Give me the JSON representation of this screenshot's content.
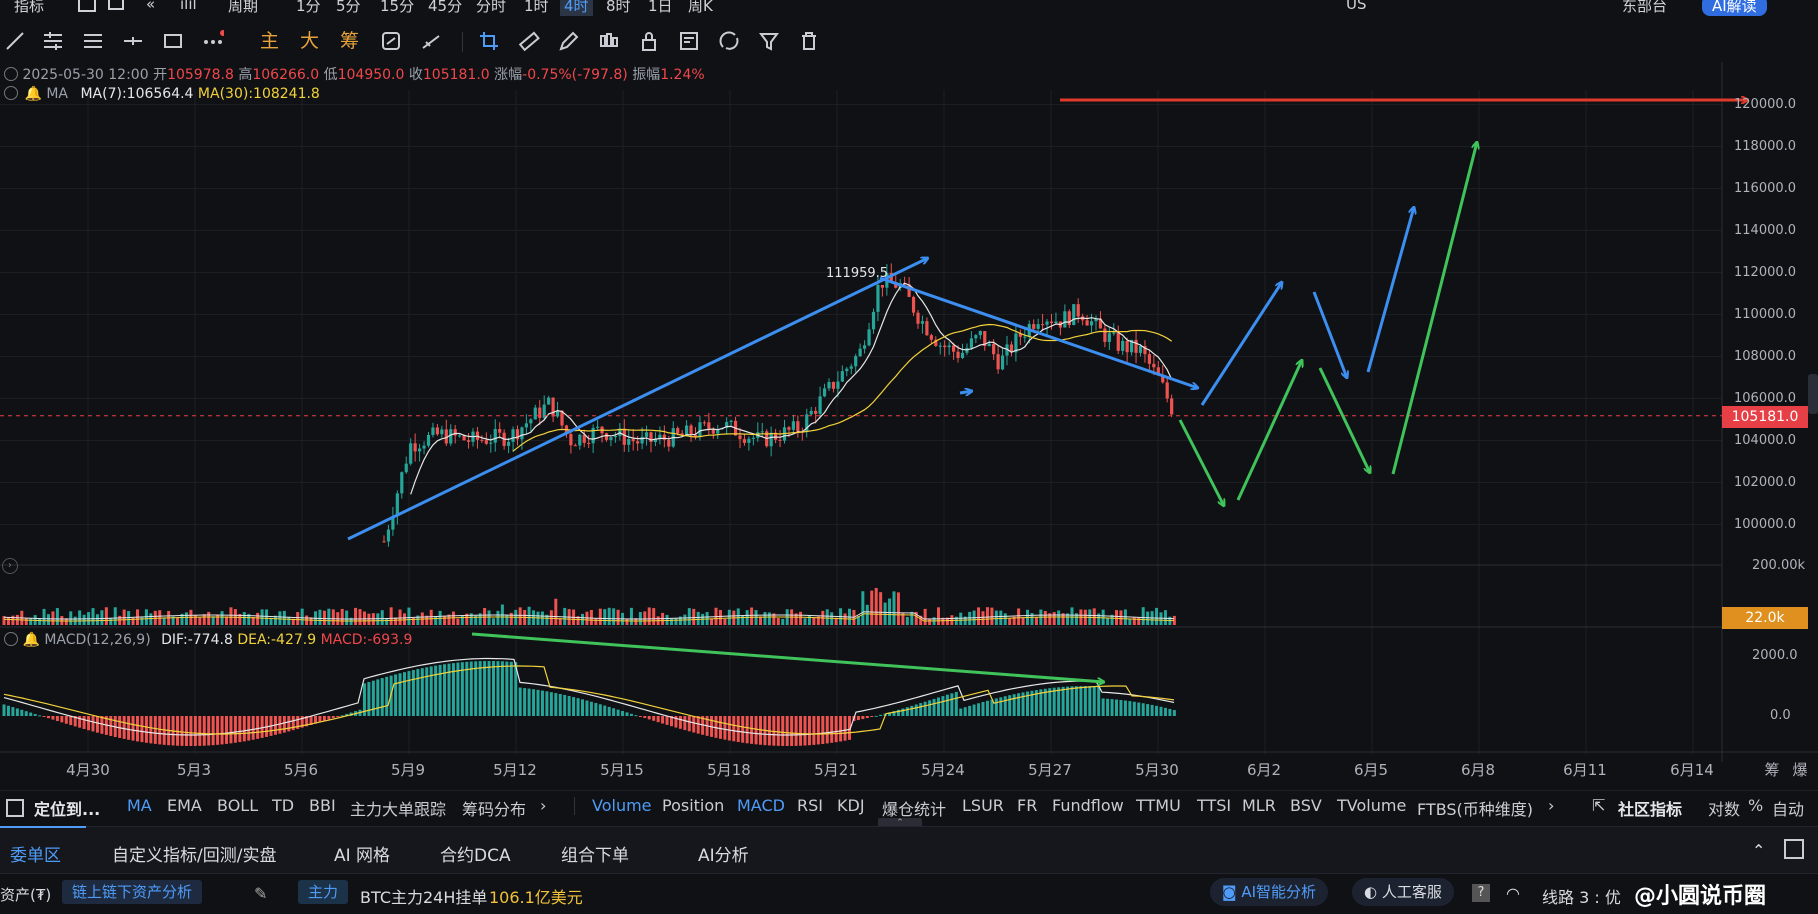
{
  "top_menu": {
    "items": [
      "指标",
      "周期",
      "1分",
      "5分",
      "15分",
      "45分",
      "分时",
      "1时",
      "4时",
      "8时",
      "1日",
      "周K"
    ],
    "active": "4时",
    "right_items": [
      "US",
      "东部台",
      "AI解读"
    ]
  },
  "toolbar": {
    "text_tools": [
      "主",
      "大",
      "筹"
    ],
    "icons": [
      "trend-line-icon",
      "parallel-channel-icon",
      "horizontal-lines-icon",
      "cross-line-icon",
      "rectangle-icon",
      "more-icon",
      "crop-icon",
      "ruler-icon",
      "pen-icon",
      "candle-icon",
      "lock-icon",
      "note-icon",
      "magnet-icon",
      "filter-icon",
      "trash-icon"
    ]
  },
  "ohlc": {
    "date": "2025-05-30 12:00",
    "open_label": "开",
    "open": "105978.8",
    "high_label": "高",
    "high": "106266.0",
    "low_label": "低",
    "low": "104950.0",
    "close_label": "收",
    "close": "105181.0",
    "change_label": "涨幅",
    "change": "-0.75%(-797.8)",
    "amp_label": "振幅",
    "amp": "1.24%"
  },
  "ma": {
    "label": "MA",
    "ma7": "MA(7):106564.4",
    "ma30": "MA(30):108241.8"
  },
  "macd": {
    "label": "MACD(12,26,9)",
    "dif": "DIF:-774.8",
    "dea": "DEA:-427.9",
    "macd": "MACD:-693.9"
  },
  "price_axis": [
    "120000.0",
    "118000.0",
    "116000.0",
    "114000.0",
    "112000.0",
    "110000.0",
    "108000.0",
    "106000.0",
    "104000.0",
    "102000.0",
    "100000.0"
  ],
  "current_price": "105181.0",
  "volume_axis": [
    "200.00k"
  ],
  "volume_current": "22.0k",
  "macd_axis": [
    "2000.0",
    "0.0"
  ],
  "high_annotation": "111959.5",
  "date_axis": [
    "4月30",
    "5月3",
    "5月6",
    "5月9",
    "5月12",
    "5月15",
    "5月18",
    "5月21",
    "5月24",
    "5月27",
    "5月30",
    "6月2",
    "6月5",
    "6月8",
    "6月11",
    "6月14"
  ],
  "date_axis_right": [
    "筹",
    "爆"
  ],
  "indicator_bar": {
    "locate": "定位到...",
    "main_indicators": [
      "MA",
      "EMA",
      "BOLL",
      "TD",
      "BBI",
      "主力大单跟踪",
      "筹码分布"
    ],
    "sub_indicators": [
      "Volume",
      "Position",
      "MACD",
      "RSI",
      "KDJ",
      "爆仓统计",
      "LSUR",
      "FR",
      "Fundflow",
      "TTMU",
      "TTSI",
      "MLR",
      "BSV",
      "TVolume",
      "FTBS(币种维度)"
    ],
    "active": [
      "MA",
      "Volume",
      "MACD"
    ],
    "community": "社区指标",
    "right_options": [
      "对数",
      "%",
      "自动"
    ]
  },
  "bottom_tabs": {
    "items": [
      "委单区",
      "自定义指标/回测/实盘",
      "AI 网格",
      "合约DCA",
      "组合下单",
      "AI分析"
    ],
    "active": "委单区"
  },
  "status_bar": {
    "asset_label": "资产(₮)",
    "chain_analysis": "链上链下资产分析",
    "main_force": "主力",
    "btc_text": "BTC主力24H挂单",
    "btc_value": "106.1亿美元",
    "ai_analysis": "AI智能分析",
    "service": "人工客服",
    "line": "线路 3 : 优",
    "watermark": "@小圆说币圈"
  },
  "colors": {
    "bullish": "#26a69a",
    "bearish": "#ef5350",
    "ma7": "#e6e6e6",
    "ma30": "#f2d23a",
    "accent": "#4f9cf8",
    "arrow_blue": "#3c8ff0",
    "arrow_green": "#3fc35a",
    "arrow_red": "#e03a2a"
  }
}
